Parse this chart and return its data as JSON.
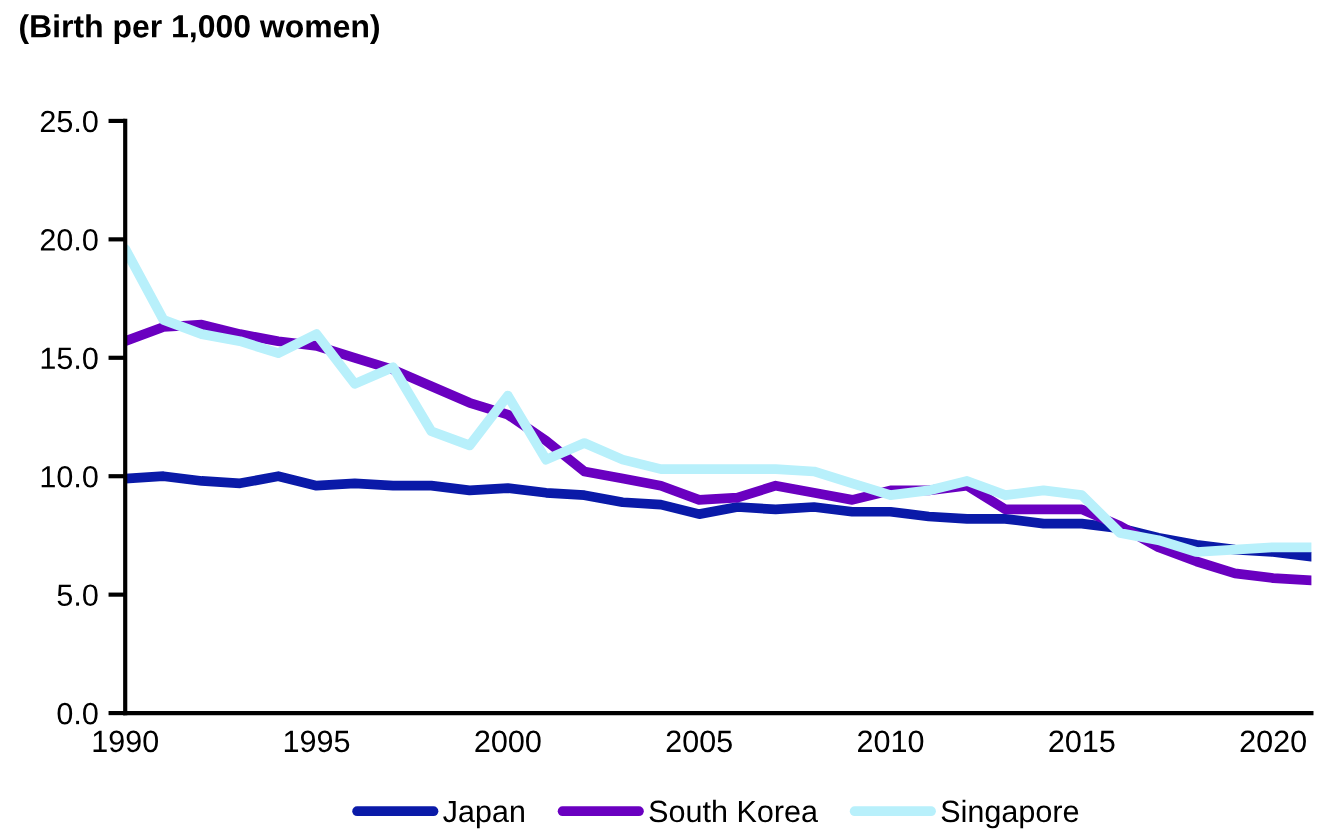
{
  "chart_data": {
    "type": "line",
    "title": "(Birth per 1,000 women)",
    "x": [
      1990,
      1991,
      1992,
      1993,
      1994,
      1995,
      1996,
      1997,
      1998,
      1999,
      2000,
      2001,
      2002,
      2003,
      2004,
      2005,
      2006,
      2007,
      2008,
      2009,
      2010,
      2011,
      2012,
      2013,
      2014,
      2015,
      2016,
      2017,
      2018,
      2019,
      2020,
      2021
    ],
    "series": [
      {
        "name": "Japan",
        "color": "#0a1aa8",
        "values": [
          9.9,
          10.0,
          9.8,
          9.7,
          10.0,
          9.6,
          9.7,
          9.6,
          9.6,
          9.4,
          9.5,
          9.3,
          9.2,
          8.9,
          8.8,
          8.4,
          8.7,
          8.6,
          8.7,
          8.5,
          8.5,
          8.3,
          8.2,
          8.2,
          8.0,
          8.0,
          7.8,
          7.4,
          7.1,
          6.9,
          6.8,
          6.6
        ]
      },
      {
        "name": "South Korea",
        "color": "#6a00c0",
        "values": [
          15.7,
          16.3,
          16.4,
          16.0,
          15.7,
          15.5,
          15.0,
          14.5,
          13.8,
          13.1,
          12.6,
          11.5,
          10.2,
          9.9,
          9.6,
          9.0,
          9.1,
          9.6,
          9.3,
          9.0,
          9.4,
          9.4,
          9.6,
          8.6,
          8.6,
          8.6,
          7.9,
          7.0,
          6.4,
          5.9,
          5.7,
          5.6
        ]
      },
      {
        "name": "Singapore",
        "color": "#b8f0fb",
        "values": [
          19.6,
          16.6,
          16.0,
          15.7,
          15.2,
          16.0,
          13.9,
          14.6,
          11.9,
          11.3,
          13.4,
          10.7,
          11.4,
          10.7,
          10.3,
          10.3,
          10.3,
          10.3,
          10.2,
          9.7,
          9.2,
          9.4,
          9.8,
          9.2,
          9.4,
          9.2,
          7.6,
          7.3,
          6.8,
          6.9,
          7.0,
          7.0
        ]
      }
    ],
    "xlim": [
      1990,
      2021
    ],
    "xticks": [
      1990,
      1995,
      2000,
      2005,
      2010,
      2015,
      2020
    ],
    "ylim": [
      0,
      25
    ],
    "yticks": [
      {
        "value": 0,
        "label": "0.0"
      },
      {
        "value": 5,
        "label": "5.0"
      },
      {
        "value": 10,
        "label": "10.0"
      },
      {
        "value": 15,
        "label": "15.0"
      },
      {
        "value": 20,
        "label": "20.0"
      },
      {
        "value": 25,
        "label": "25.0"
      }
    ],
    "grid": false,
    "legend": "bottom",
    "marker": "none",
    "line_style": "solid"
  }
}
